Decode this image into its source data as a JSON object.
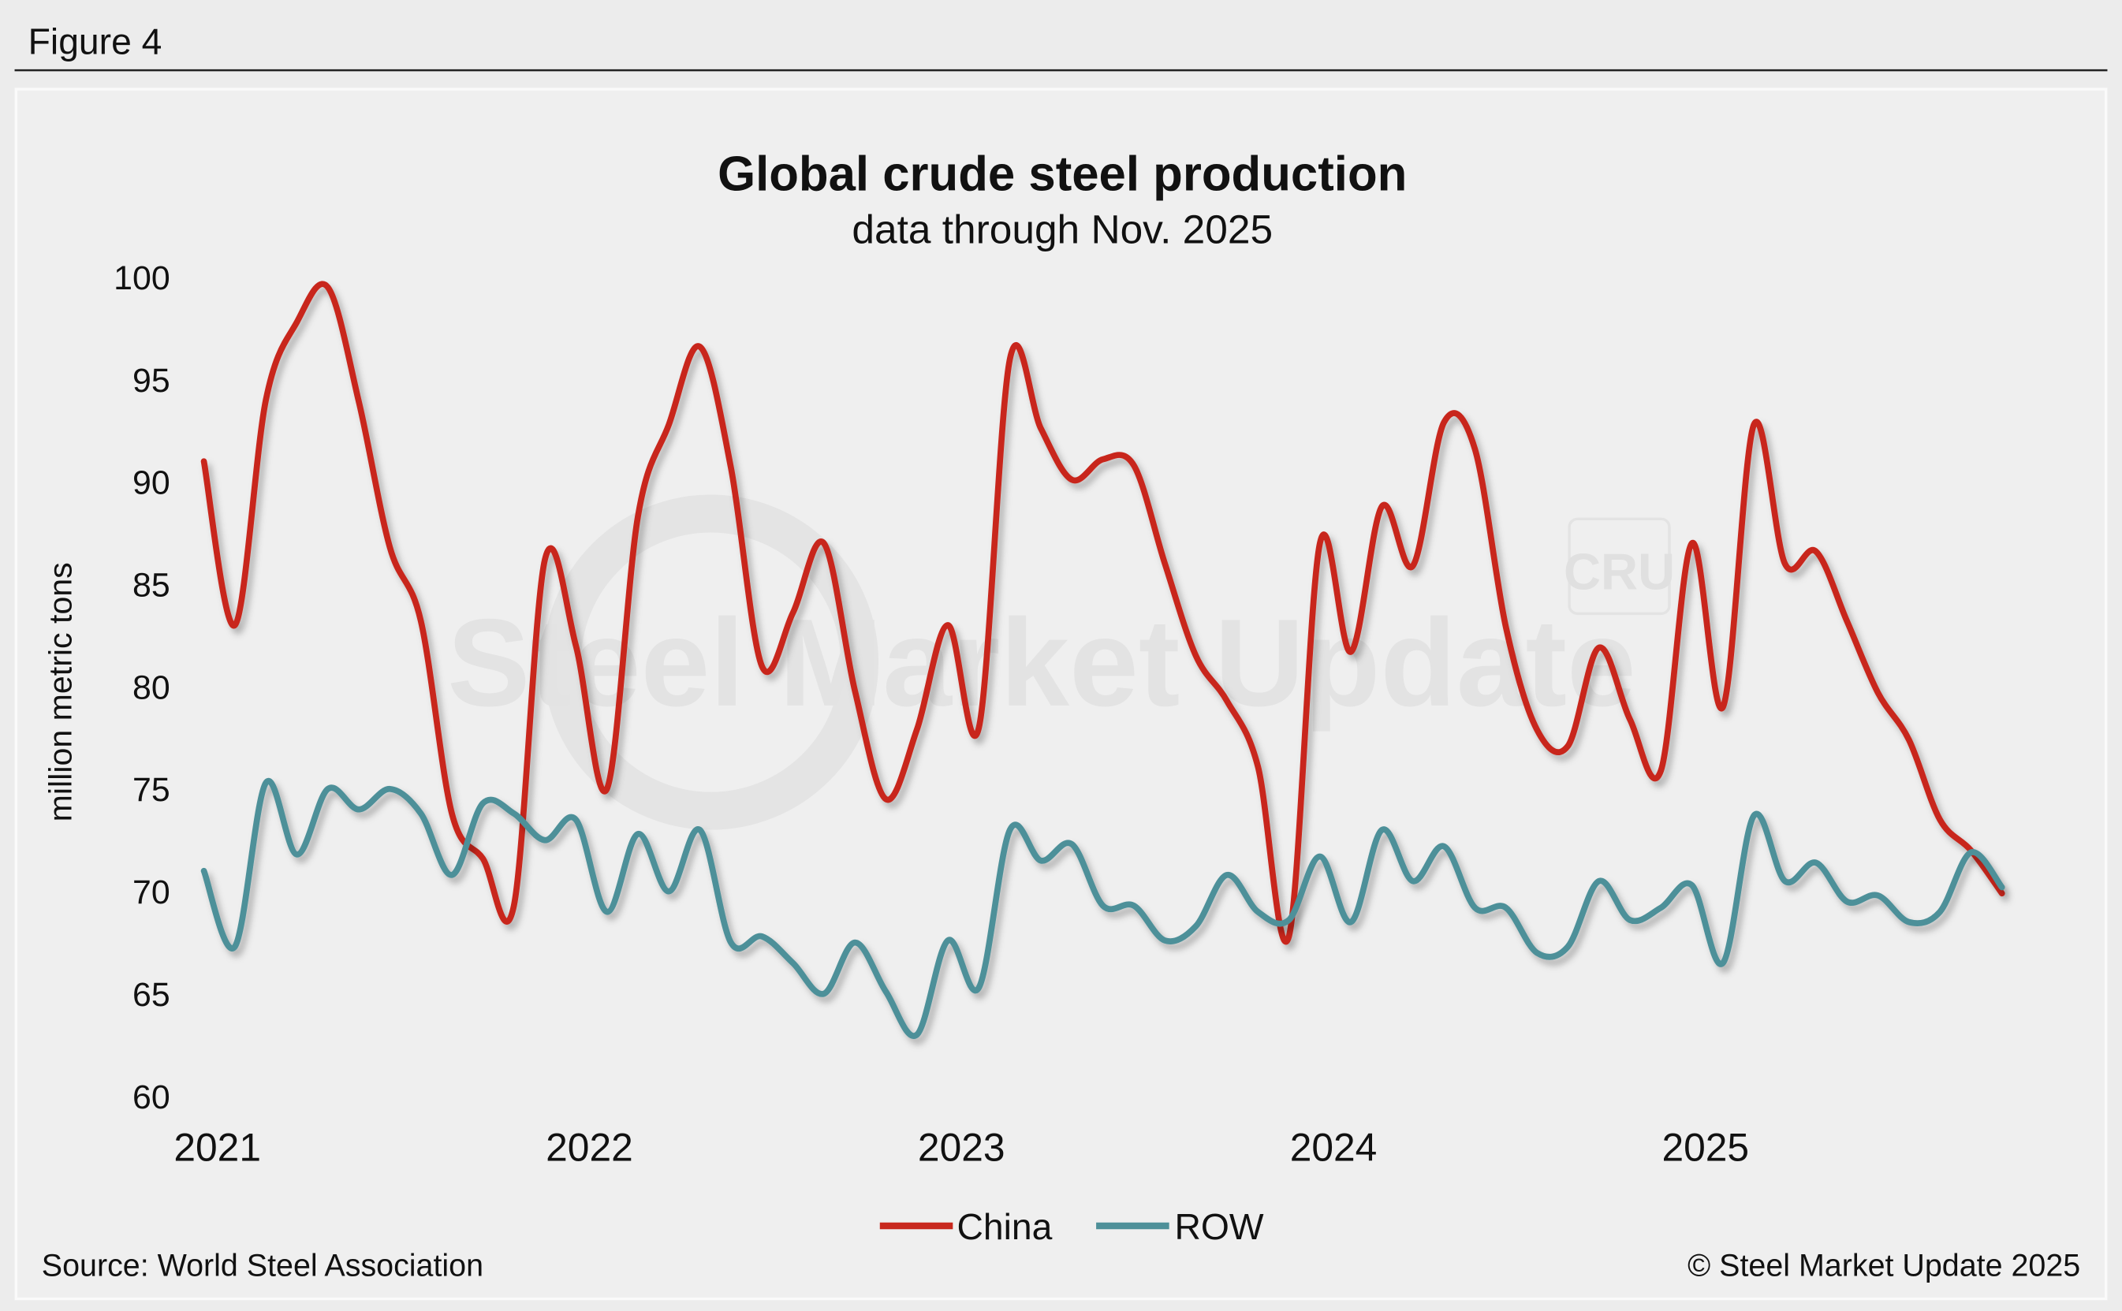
{
  "figure_label": "Figure 4",
  "source": "Source: World Steel Association",
  "copyright": "© Steel Market Update 2025",
  "watermark": "Steel Market Update",
  "watermark_logo": "CRU",
  "chart_data": {
    "type": "line",
    "title": "Global crude steel production",
    "subtitle": "data through Nov. 2025",
    "xlabel": "",
    "ylabel": "million metric tons",
    "ylim": [
      60,
      100
    ],
    "yticks": [
      100,
      95,
      90,
      85,
      80,
      75,
      70,
      65,
      60
    ],
    "xticks": [
      "2021",
      "2022",
      "2023",
      "2024",
      "2025"
    ],
    "x_start": "2021-01",
    "x_end": "2025-11",
    "frequency": "monthly",
    "grid": false,
    "legend": "bottom",
    "series": [
      {
        "name": "China",
        "color": "#c8281e",
        "values": [
          91.0,
          83.0,
          94.0,
          97.8,
          99.5,
          93.9,
          86.8,
          83.2,
          73.8,
          71.6,
          69.3,
          86.2,
          82.0,
          75.0,
          88.3,
          92.8,
          96.6,
          90.7,
          81.0,
          83.6,
          87.0,
          79.8,
          74.5,
          77.9,
          83.0,
          78.0,
          96.0,
          92.6,
          90.1,
          91.1,
          90.8,
          86.0,
          81.5,
          79.3,
          76.1,
          67.8,
          87.0,
          81.7,
          88.8,
          85.9,
          92.9,
          91.6,
          82.9,
          77.9,
          77.1,
          81.9,
          78.4,
          75.9,
          87.0,
          79.0,
          92.8,
          86.0,
          86.6,
          83.2,
          79.7,
          77.4,
          73.5,
          72.0,
          69.9
        ]
      },
      {
        "name": "ROW",
        "color": "#4e9099",
        "values": [
          71.0,
          67.3,
          75.3,
          71.8,
          75.0,
          74.0,
          75.0,
          73.8,
          70.8,
          74.3,
          73.8,
          72.5,
          73.5,
          69.0,
          72.8,
          70.0,
          73.0,
          67.5,
          67.8,
          66.5,
          65.0,
          67.5,
          65.1,
          63.0,
          67.6,
          65.3,
          73.0,
          71.5,
          72.3,
          69.3,
          69.3,
          67.6,
          68.3,
          70.8,
          69.0,
          68.6,
          71.7,
          68.5,
          73.0,
          70.5,
          72.2,
          69.2,
          69.2,
          67.0,
          67.3,
          70.5,
          68.6,
          69.2,
          70.3,
          66.5,
          73.7,
          70.5,
          71.4,
          69.5,
          69.8,
          68.5,
          69.0,
          71.9,
          70.2
        ]
      }
    ]
  }
}
